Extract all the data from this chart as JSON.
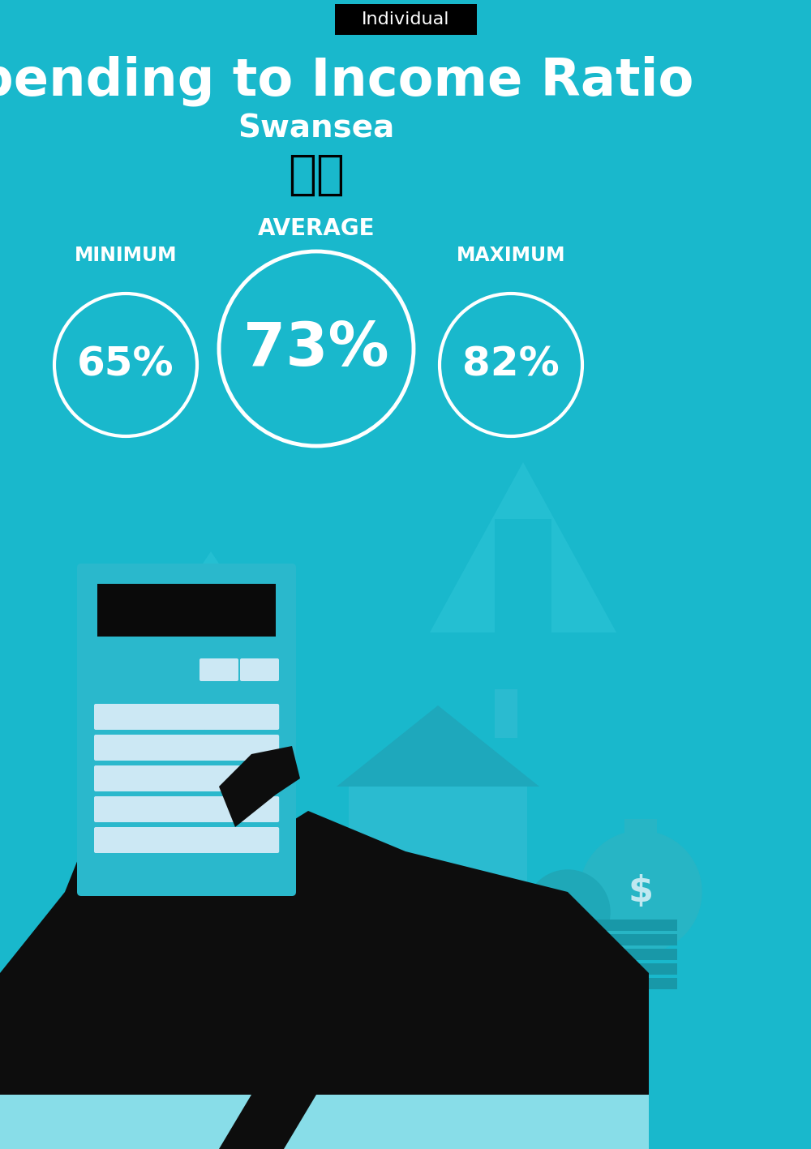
{
  "bg_color": "#19b8cc",
  "title": "Spending to Income Ratio",
  "subtitle": "Swansea",
  "tag_text": "Individual",
  "tag_bg": "#000000",
  "tag_text_color": "#ffffff",
  "title_color": "#ffffff",
  "subtitle_color": "#ffffff",
  "min_label": "MINIMUM",
  "avg_label": "AVERAGE",
  "max_label": "MAXIMUM",
  "min_value": "65%",
  "avg_value": "73%",
  "max_value": "82%",
  "circle_color": "#ffffff",
  "circle_text_color": "#ffffff",
  "label_color": "#ffffff",
  "title_fontsize": 46,
  "subtitle_fontsize": 28,
  "tag_fontsize": 16,
  "min_fontsize": 36,
  "avg_fontsize": 54,
  "max_fontsize": 36,
  "label_fontsize_side": 17,
  "label_fontsize_avg": 20
}
